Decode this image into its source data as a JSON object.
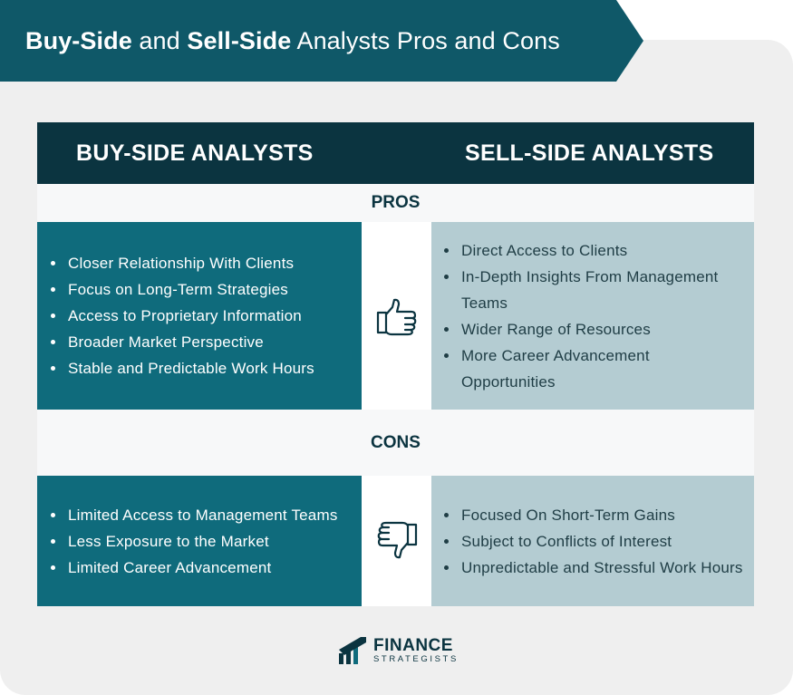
{
  "title": {
    "part1_bold": "Buy-Side",
    "part2": " and ",
    "part3_bold": "Sell-Side",
    "part4": " Analysts Pros and Cons"
  },
  "columns": {
    "left": "BUY-SIDE ANALYSTS",
    "right": "SELL-SIDE ANALYSTS"
  },
  "pros": {
    "label": "PROS",
    "icon": "thumbs-up-icon",
    "buy_side": [
      "Closer Relationship With Clients",
      "Focus on Long-Term Strategies",
      "Access to Proprietary Information",
      "Broader Market Perspective",
      "Stable and Predictable Work Hours"
    ],
    "sell_side": [
      "Direct Access to Clients",
      "In-Depth Insights From Management Teams",
      "Wider Range of Resources",
      "More Career Advancement Opportunities"
    ]
  },
  "cons": {
    "label": "CONS",
    "icon": "thumbs-down-icon",
    "buy_side": [
      "Limited Access to Management Teams",
      "Less Exposure to the Market",
      "Limited Career Advancement"
    ],
    "sell_side": [
      "Focused On Short-Term Gains",
      "Subject to Conflicts of Interest",
      "Unpredictable and Stressful Work Hours"
    ]
  },
  "logo": {
    "line1": "FINANCE",
    "line2": "STRATEGISTS"
  },
  "colors": {
    "banner": "#0f5868",
    "header": "#0b3440",
    "left_cell": "#0f6b7c",
    "right_cell": "#b4ccd2",
    "background": "#efefef"
  }
}
